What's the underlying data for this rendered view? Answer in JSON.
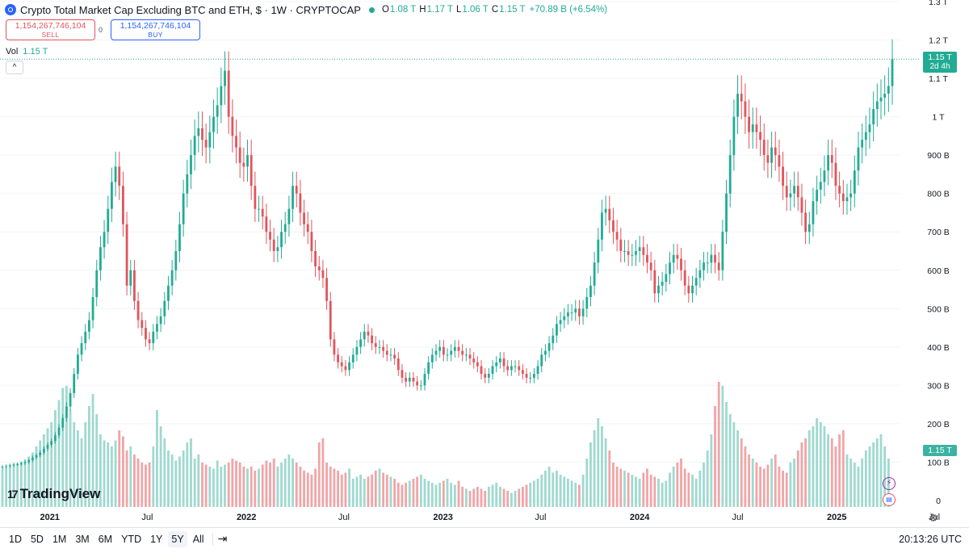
{
  "legend": {
    "title": "Crypto Total Market Cap Excluding BTC and ETH, $ · 1W · CRYPTOCAP",
    "open_label": "O",
    "open": "1.08 T",
    "high_label": "H",
    "high": "1.17 T",
    "low_label": "L",
    "low": "1.06 T",
    "close_label": "C",
    "close": "1.15 T",
    "change": "+70.89 B (+6.54%)"
  },
  "trade": {
    "sell_price": "1,154,267,746,104",
    "sell_label": "SELL",
    "buy_price": "1,154,267,746,104",
    "buy_label": "BUY",
    "spread": "0"
  },
  "volume": {
    "label": "Vol",
    "value": "1.15 T"
  },
  "collapse_icon": "chevron-up-icon",
  "price_tag": {
    "value": "1.15 T",
    "countdown": "2d 4h"
  },
  "volume_tag": {
    "value": "1.15 T"
  },
  "logo": {
    "mark": "17",
    "text": "TradingView"
  },
  "bottom": {
    "ranges": [
      "1D",
      "5D",
      "1M",
      "3M",
      "6M",
      "YTD",
      "1Y",
      "5Y",
      "All"
    ],
    "active_range": "5Y",
    "time": "20:13:26 UTC"
  },
  "colors": {
    "up": "#22ab94",
    "down": "#e0555c",
    "up_vol": "#9fd9cf",
    "down_vol": "#f0a5a7",
    "accent": "#2962ff"
  },
  "chart_data": {
    "type": "candlestick",
    "title": "Crypto Total Market Cap Excluding BTC and ETH, $ · 1W · CRYPTOCAP",
    "y_ticks": [
      "1.3 T",
      "1.2 T",
      "1.1 T",
      "1 T",
      "900 B",
      "800 B",
      "700 B",
      "600 B",
      "500 B",
      "400 B",
      "300 B",
      "200 B",
      "100 B",
      "0"
    ],
    "y_tick_values": [
      1300,
      1200,
      1100,
      1000,
      900,
      800,
      700,
      600,
      500,
      400,
      300,
      200,
      100,
      0
    ],
    "y_unit": "B",
    "ylim": [
      0,
      1300
    ],
    "x_ticks": [
      "2021",
      "Jul",
      "2022",
      "Jul",
      "2023",
      "Jul",
      "2024",
      "Jul",
      "2025",
      "Jul"
    ],
    "x_tick_dates": [
      "2021-01-01",
      "2021-07-01",
      "2022-01-01",
      "2022-07-01",
      "2023-01-01",
      "2023-07-01",
      "2024-01-01",
      "2024-07-01",
      "2025-01-01",
      "2025-07-01"
    ],
    "x_bold": [
      true,
      false,
      true,
      false,
      true,
      false,
      true,
      false,
      true,
      false
    ],
    "x_start": "2020-10-05",
    "candle_interval": "1W",
    "close_series": [
      88,
      90,
      92,
      94,
      95,
      97,
      100,
      105,
      112,
      118,
      125,
      135,
      145,
      155,
      170,
      190,
      215,
      245,
      280,
      330,
      380,
      410,
      440,
      470,
      530,
      600,
      660,
      700,
      760,
      830,
      870,
      820,
      720,
      560,
      600,
      520,
      470,
      450,
      420,
      410,
      440,
      460,
      480,
      520,
      560,
      600,
      650,
      720,
      800,
      850,
      900,
      950,
      970,
      940,
      920,
      960,
      1000,
      1030,
      1080,
      1120,
      1000,
      950,
      920,
      880,
      870,
      900,
      820,
      760,
      760,
      740,
      700,
      680,
      650,
      660,
      700,
      720,
      760,
      820,
      800,
      750,
      720,
      700,
      650,
      610,
      600,
      580,
      520,
      420,
      380,
      360,
      350,
      340,
      360,
      380,
      400,
      420,
      440,
      430,
      410,
      400,
      400,
      390,
      380,
      380,
      370,
      340,
      320,
      310,
      320,
      310,
      300,
      300,
      330,
      360,
      380,
      390,
      400,
      380,
      380,
      390,
      400,
      390,
      380,
      380,
      370,
      360,
      350,
      330,
      320,
      330,
      350,
      360,
      370,
      350,
      340,
      350,
      350,
      340,
      330,
      320,
      320,
      330,
      350,
      380,
      390,
      410,
      430,
      460,
      470,
      480,
      490,
      490,
      500,
      480,
      500,
      530,
      560,
      620,
      680,
      750,
      760,
      730,
      700,
      680,
      650,
      650,
      640,
      640,
      650,
      660,
      640,
      620,
      600,
      540,
      560,
      570,
      590,
      620,
      640,
      630,
      600,
      560,
      540,
      560,
      580,
      600,
      620,
      620,
      640,
      620,
      600,
      700,
      800,
      900,
      1000,
      1060,
      1040,
      1000,
      960,
      980,
      960,
      940,
      900,
      880,
      920,
      900,
      870,
      820,
      790,
      800,
      820,
      790,
      750,
      700,
      720,
      780,
      810,
      830,
      860,
      900,
      880,
      820,
      800,
      780,
      790,
      800,
      860,
      920,
      940,
      960,
      980,
      1020,
      1040,
      1050,
      1060,
      1080,
      1150
    ],
    "volume_series": [
      95,
      98,
      102,
      105,
      108,
      112,
      118,
      125,
      135,
      150,
      165,
      180,
      195,
      210,
      240,
      265,
      295,
      300,
      240,
      210,
      190,
      170,
      210,
      250,
      280,
      230,
      180,
      165,
      160,
      150,
      165,
      190,
      175,
      140,
      150,
      130,
      120,
      110,
      105,
      110,
      150,
      240,
      200,
      170,
      140,
      130,
      115,
      125,
      140,
      160,
      170,
      120,
      130,
      110,
      105,
      100,
      95,
      115,
      100,
      105,
      110,
      120,
      115,
      110,
      100,
      95,
      100,
      90,
      95,
      105,
      115,
      110,
      120,
      100,
      110,
      120,
      130,
      120,
      110,
      100,
      90,
      85,
      80,
      95,
      160,
      170,
      110,
      100,
      95,
      90,
      80,
      85,
      95,
      70,
      75,
      80,
      70,
      75,
      80,
      90,
      95,
      85,
      80,
      75,
      70,
      60,
      55,
      60,
      65,
      70,
      75,
      80,
      70,
      65,
      60,
      55,
      60,
      65,
      70,
      60,
      55,
      65,
      50,
      45,
      40,
      45,
      50,
      45,
      40,
      50,
      55,
      60,
      50,
      45,
      40,
      35,
      40,
      45,
      50,
      55,
      60,
      65,
      70,
      80,
      90,
      100,
      85,
      90,
      80,
      75,
      70,
      65,
      60,
      55,
      80,
      120,
      160,
      190,
      220,
      200,
      170,
      140,
      110,
      100,
      95,
      90,
      85,
      80,
      75,
      70,
      85,
      95,
      80,
      75,
      70,
      60,
      65,
      85,
      100,
      110,
      120,
      95,
      85,
      80,
      70,
      90,
      110,
      140,
      180,
      250,
      310,
      300,
      260,
      230,
      210,
      190,
      170,
      150,
      130,
      120,
      110,
      100,
      95,
      105,
      120,
      130,
      100,
      90,
      85,
      110,
      120,
      140,
      160,
      170,
      190,
      200,
      220,
      210,
      200,
      180,
      170,
      150,
      180,
      190,
      130,
      120,
      110,
      100,
      120,
      140,
      150,
      160,
      170,
      180,
      150,
      120
    ],
    "last_price": "1.15 T",
    "last_volume": "1.15 T"
  }
}
